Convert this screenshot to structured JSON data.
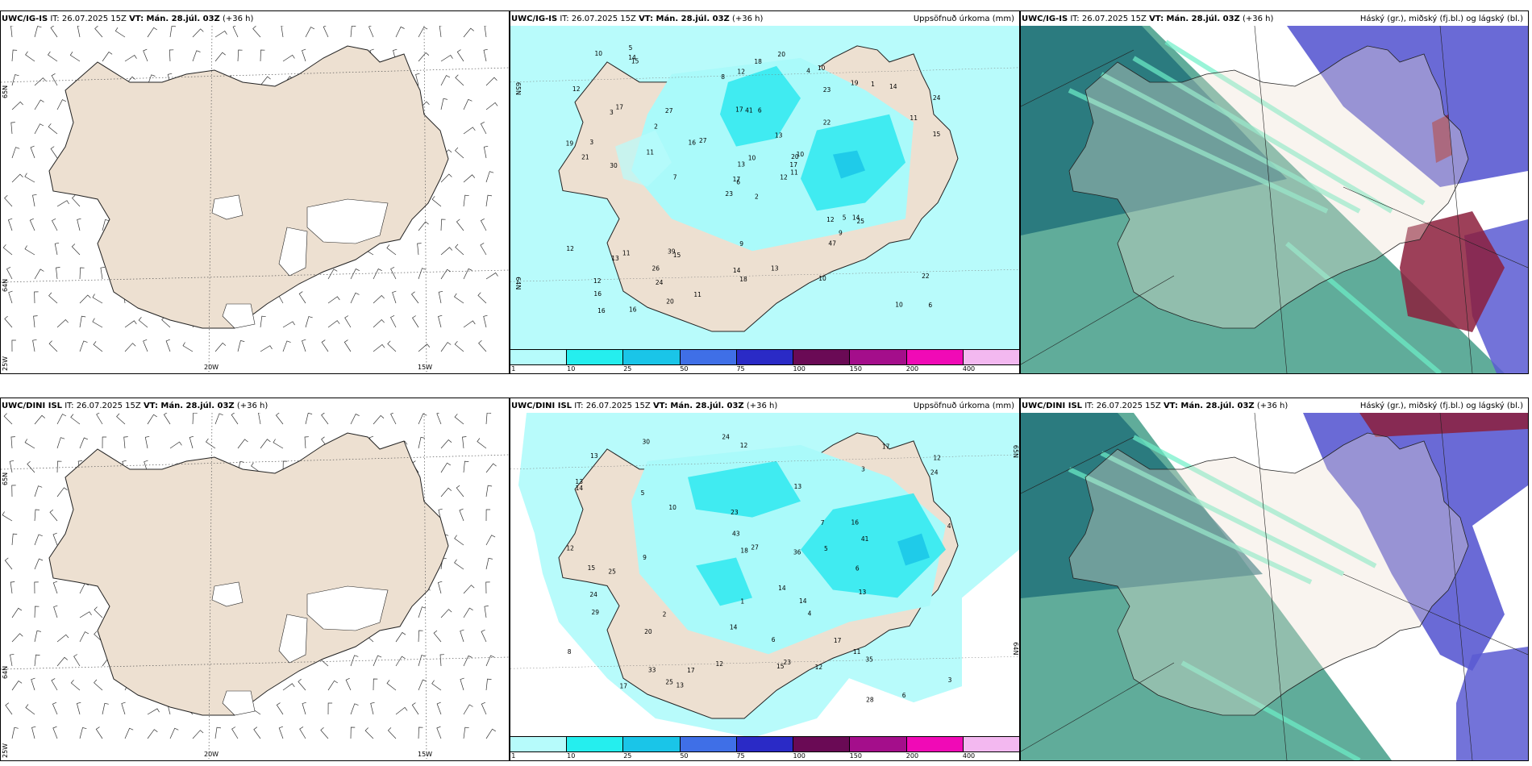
{
  "colors": {
    "land": "#ede0d1",
    "precip_light": "#aafafa",
    "precip_mid": "#2ee8ee",
    "cloud_high": "#4fa38f",
    "cloud_mid": "#5a5ad2",
    "cloud_low": "#8c1f3c"
  },
  "rows": [
    {
      "model": "UWC/IG-IS",
      "it": "IT: 26.07.2025 15Z",
      "vt": "VT: Mán. 28.júl. 03Z",
      "lead": "(+36 h)",
      "wind_panel": {
        "lat_labels": [
          "65N",
          "64N",
          "25W"
        ],
        "lon_labels": [
          "20W",
          "15W"
        ]
      },
      "precip_panel": {
        "title": "Uppsöfnuð úrkoma (mm)",
        "lat_labels": [
          "65N",
          "64N"
        ],
        "values": [
          "2",
          "3",
          "6",
          "12",
          "20",
          "15",
          "10",
          "6",
          "23",
          "12",
          "15",
          "6",
          "30",
          "24",
          "23",
          "22",
          "16",
          "17",
          "13",
          "11",
          "27",
          "16",
          "24",
          "41",
          "10",
          "25",
          "17",
          "12",
          "21",
          "12",
          "15",
          "17",
          "14",
          "13",
          "27",
          "19",
          "39",
          "10",
          "22",
          "14",
          "20",
          "16",
          "11",
          "47",
          "20",
          "19",
          "17",
          "16",
          "18",
          "11",
          "13",
          "11",
          "12",
          "9",
          "10",
          "26",
          "14",
          "10",
          "13",
          "14",
          "18",
          "7",
          "3",
          "2",
          "1",
          "5",
          "4",
          "8",
          "10",
          "12",
          "9",
          "11",
          "5"
        ],
        "cbar_ticks": [
          "1",
          "10",
          "25",
          "50",
          "75",
          "100",
          "150",
          "200",
          "400"
        ],
        "cbar_colors": [
          "#b6fbfb",
          "#25eeee",
          "#1ac5e8",
          "#3f6fe7",
          "#2a2ac6",
          "#6a0a55",
          "#a40e8b",
          "#f00ab6",
          "#f3b8f0"
        ]
      },
      "cloud_panel": {
        "title": "Háský (gr.), miðský (fj.bl.) og lágský (bl.)"
      }
    },
    {
      "model": "UWC/DINI ISL",
      "it": "IT: 26.07.2025 15Z",
      "vt": "VT: Mán. 28.júl. 03Z",
      "lead": "(+36 h)",
      "wind_panel": {
        "lat_labels": [
          "65N",
          "64N",
          "25W"
        ],
        "lon_labels": [
          "20W",
          "15W"
        ]
      },
      "precip_panel": {
        "title": "Uppsöfnuð úrkoma (mm)",
        "lat_labels": [
          "65N",
          "64N"
        ],
        "values": [
          "12",
          "12",
          "16",
          "12",
          "13",
          "6",
          "25",
          "13",
          "23",
          "17",
          "27",
          "13",
          "24",
          "14",
          "5",
          "20",
          "23",
          "15",
          "14",
          "14",
          "17",
          "35",
          "24",
          "43",
          "33",
          "18",
          "14",
          "30",
          "13",
          "15",
          "24",
          "28",
          "36",
          "17",
          "25",
          "29",
          "41",
          "13",
          "17",
          "10",
          "6",
          "5",
          "3",
          "4",
          "1",
          "2",
          "3",
          "8",
          "12",
          "9",
          "7",
          "11",
          "4",
          "6",
          "12"
        ],
        "cbar_ticks": [
          "1",
          "10",
          "25",
          "50",
          "75",
          "100",
          "150",
          "200",
          "400"
        ],
        "cbar_colors": [
          "#b6fbfb",
          "#25eeee",
          "#1ac5e8",
          "#3f6fe7",
          "#2a2ac6",
          "#6a0a55",
          "#a40e8b",
          "#f00ab6",
          "#f3b8f0"
        ]
      },
      "cloud_panel": {
        "title": "Háský (gr.), miðský (fj.bl.) og lágský (bl.)"
      }
    }
  ]
}
